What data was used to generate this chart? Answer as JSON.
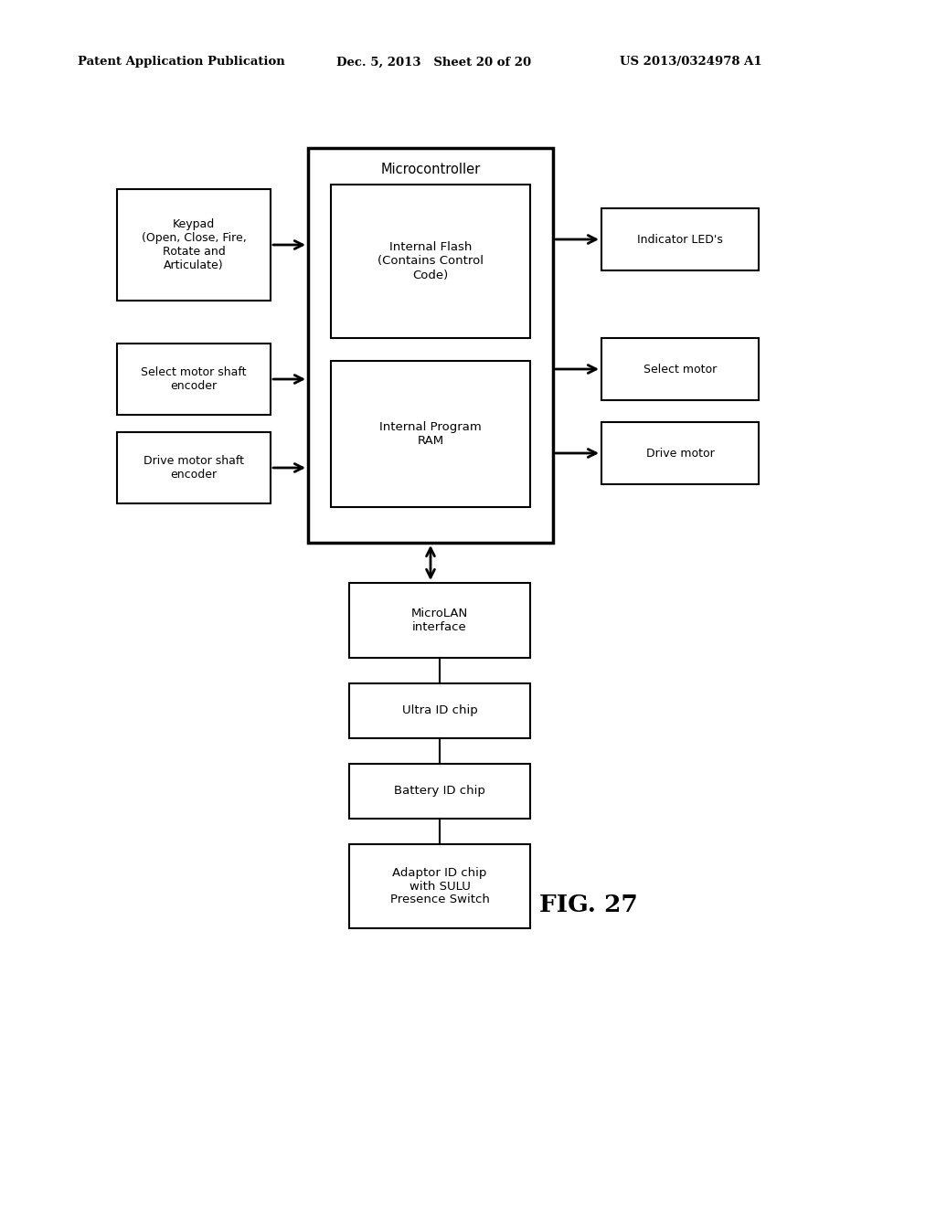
{
  "background": "#ffffff",
  "header_left": "Patent Application Publication",
  "header_mid": "Dec. 5, 2013   Sheet 20 of 20",
  "header_right": "US 2013/0324978 A1",
  "fig_label": "FIG. 27",
  "keypad_label": "Keypad\n(Open, Close, Fire,\nRotate and\nArticulate)",
  "select_enc_label": "Select motor shaft\nencoder",
  "drive_enc_label": "Drive motor shaft\nencoder",
  "mc_label": "Microcontroller",
  "int_flash_label": "Internal Flash\n(Contains Control\nCode)",
  "int_ram_label": "Internal Program\nRAM",
  "indicator_label": "Indicator LED's",
  "select_motor_label": "Select motor",
  "drive_motor_label": "Drive motor",
  "microlan_label": "MicroLAN\ninterface",
  "ultra_id_label": "Ultra ID chip",
  "battery_id_label": "Battery ID chip",
  "adaptor_id_label": "Adaptor ID chip\nwith SULU\nPresence Switch"
}
